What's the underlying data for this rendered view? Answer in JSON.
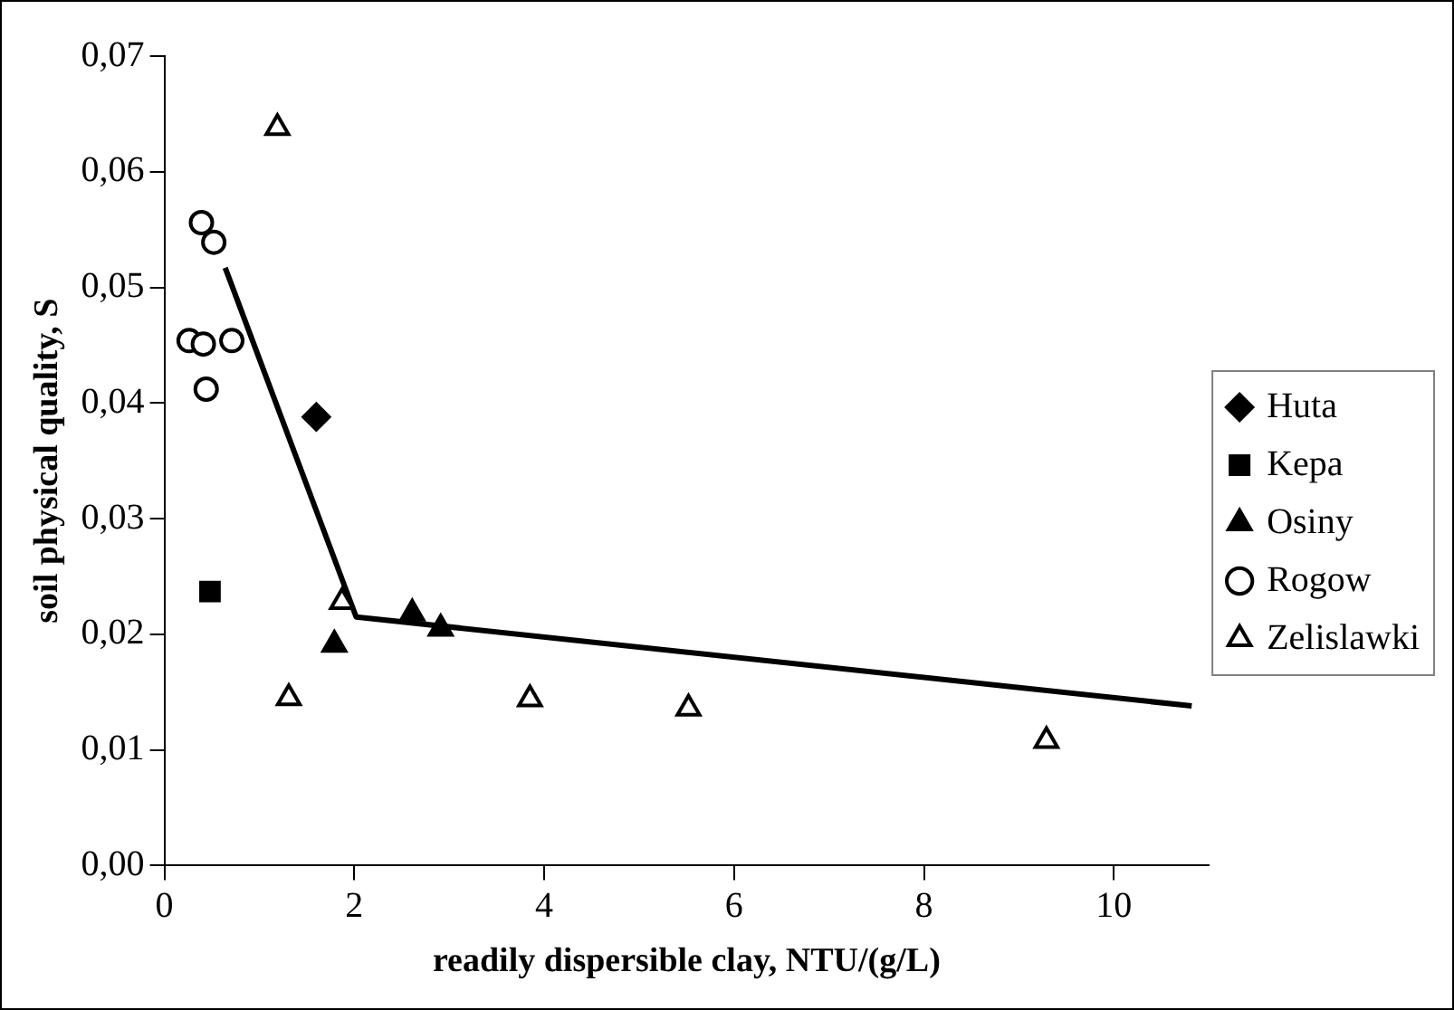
{
  "chart_data": {
    "type": "scatter",
    "xlabel": "readily dispersible clay, NTU/(g/L)",
    "ylabel": "soil physical quality, S",
    "xlim": [
      0,
      11
    ],
    "xticks": [
      0,
      2,
      4,
      6,
      8,
      10
    ],
    "ylim": [
      0,
      0.07
    ],
    "yticks": [
      {
        "value": 0,
        "label": "0,00"
      },
      {
        "value": 0.01,
        "label": "0,01"
      },
      {
        "value": 0.02,
        "label": "0,02"
      },
      {
        "value": 0.03,
        "label": "0,03"
      },
      {
        "value": 0.04,
        "label": "0,04"
      },
      {
        "value": 0.05,
        "label": "0,05"
      },
      {
        "value": 0.06,
        "label": "0,06"
      },
      {
        "value": 0.07,
        "label": "0,07"
      }
    ],
    "grid": false,
    "legend": "right",
    "series": [
      {
        "name": "Huta",
        "color": "#000000",
        "marker": "diamond",
        "x": [
          1.6
        ],
        "values": [
          0.0388
        ]
      },
      {
        "name": "Kepa",
        "color": "#000000",
        "marker": "square",
        "x": [
          0.48
        ],
        "values": [
          0.0237
        ]
      },
      {
        "name": "Osiny",
        "color": "#000000",
        "marker": "triangle",
        "x": [
          1.79,
          2.61,
          2.91
        ],
        "values": [
          0.0191,
          0.0218,
          0.0205
        ]
      },
      {
        "name": "Rogow",
        "color": "#ffffff",
        "marker": "circle",
        "x": [
          0.39,
          0.52,
          0.26,
          0.41,
          0.71,
          0.44
        ],
        "values": [
          0.0556,
          0.0539,
          0.0454,
          0.0451,
          0.0454,
          0.0412
        ]
      },
      {
        "name": "Zelislawki",
        "color": "#ffffff",
        "marker": "triangle",
        "x": [
          1.19,
          1.31,
          1.87,
          3.85,
          5.52,
          9.29
        ],
        "values": [
          0.0638,
          0.0145,
          0.0228,
          0.0144,
          0.0136,
          0.0108
        ]
      },
      {
        "type": "line",
        "color": "#000000",
        "marker": "none",
        "line_style": "solid",
        "x": [
          0.64,
          2.02,
          10.82
        ],
        "values": [
          0.0517,
          0.0215,
          0.0138
        ]
      }
    ]
  }
}
